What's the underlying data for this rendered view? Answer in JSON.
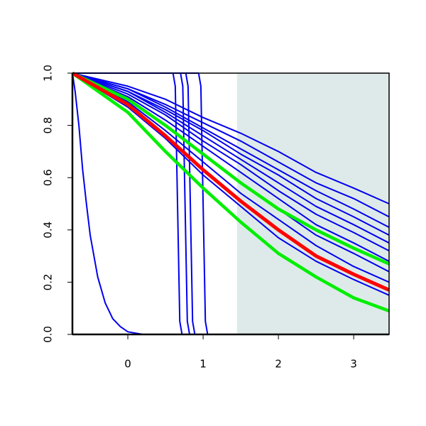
{
  "chart_data": {
    "type": "line",
    "xlim": [
      -0.736,
      3.47
    ],
    "ylim": [
      0,
      1
    ],
    "xticks": [
      0,
      1,
      2,
      3
    ],
    "yticks": [
      {
        "value": 0,
        "label": "0.0"
      },
      {
        "value": 0.2,
        "label": "0.2"
      },
      {
        "value": 0.4,
        "label": "0.4"
      },
      {
        "value": 0.6,
        "label": "0.6"
      },
      {
        "value": 0.8,
        "label": "0.8"
      },
      {
        "value": 1,
        "label": "1.0"
      }
    ],
    "shaded_region": {
      "x": [
        1.45,
        3.47
      ],
      "color": "#deeaea"
    },
    "x": [
      -0.736,
      0,
      0.5,
      1,
      1.5,
      2,
      2.5,
      3,
      3.47
    ],
    "series": [
      {
        "color": "#0000ee",
        "line_width": 2,
        "values": [
          1,
          0.95,
          0.9,
          0.83,
          0.77,
          0.7,
          0.62,
          0.56,
          0.5
        ]
      },
      {
        "color": "#0000ee",
        "line_width": 2,
        "values": [
          1,
          0.94,
          0.88,
          0.81,
          0.74,
          0.66,
          0.58,
          0.52,
          0.45
        ]
      },
      {
        "color": "#0000ee",
        "line_width": 2,
        "values": [
          1,
          0.94,
          0.87,
          0.79,
          0.71,
          0.63,
          0.55,
          0.48,
          0.41
        ]
      },
      {
        "color": "#0000ee",
        "line_width": 2,
        "values": [
          1,
          0.93,
          0.86,
          0.78,
          0.69,
          0.61,
          0.52,
          0.45,
          0.38
        ]
      },
      {
        "color": "#0000ee",
        "line_width": 2,
        "values": [
          1,
          0.93,
          0.85,
          0.76,
          0.67,
          0.58,
          0.49,
          0.42,
          0.35
        ]
      },
      {
        "color": "#0000ee",
        "line_width": 2,
        "values": [
          1,
          0.92,
          0.84,
          0.74,
          0.65,
          0.55,
          0.46,
          0.39,
          0.32
        ]
      },
      {
        "color": "#0000ee",
        "line_width": 2,
        "values": [
          1,
          0.91,
          0.82,
          0.72,
          0.62,
          0.52,
          0.42,
          0.35,
          0.28
        ]
      },
      {
        "color": "#0000ee",
        "line_width": 2,
        "values": [
          1,
          0.9,
          0.8,
          0.69,
          0.58,
          0.48,
          0.38,
          0.31,
          0.24
        ]
      },
      {
        "color": "#0000ee",
        "line_width": 2,
        "values": [
          1,
          0.89,
          0.78,
          0.66,
          0.54,
          0.44,
          0.34,
          0.26,
          0.2
        ]
      },
      {
        "color": "#0000ee",
        "line_width": 2,
        "values": [
          1,
          0.87,
          0.75,
          0.61,
          0.49,
          0.37,
          0.28,
          0.21,
          0.15
        ]
      },
      {
        "color": "#0000ee",
        "line_width": 2,
        "x": [
          -0.736,
          0.6,
          0.63,
          0.66,
          0.69,
          0.72,
          3.47
        ],
        "values": [
          1,
          1,
          0.95,
          0.5,
          0.05,
          0,
          0
        ]
      },
      {
        "color": "#0000ee",
        "line_width": 2,
        "x": [
          -0.736,
          0.7,
          0.73,
          0.76,
          0.79,
          0.82,
          3.47
        ],
        "values": [
          1,
          1,
          0.95,
          0.5,
          0.05,
          0,
          0
        ]
      },
      {
        "color": "#0000ee",
        "line_width": 2,
        "x": [
          -0.736,
          0.77,
          0.8,
          0.83,
          0.86,
          0.89,
          3.47
        ],
        "values": [
          1,
          1,
          0.95,
          0.5,
          0.05,
          0,
          0
        ]
      },
      {
        "color": "#0000ee",
        "line_width": 2,
        "x": [
          -0.736,
          0.94,
          0.97,
          1.0,
          1.03,
          1.06,
          3.47
        ],
        "values": [
          1,
          1,
          0.95,
          0.5,
          0.05,
          0,
          0
        ]
      },
      {
        "color": "#0000ee",
        "line_width": 2,
        "x": [
          -0.736,
          -0.7,
          -0.65,
          -0.6,
          -0.55,
          -0.5,
          -0.4,
          -0.3,
          -0.2,
          -0.1,
          0,
          0.2,
          3.47
        ],
        "values": [
          1,
          0.93,
          0.8,
          0.63,
          0.5,
          0.38,
          0.22,
          0.12,
          0.06,
          0.03,
          0.01,
          0,
          0
        ]
      },
      {
        "color": "#00ee00",
        "line_width": 4.5,
        "values": [
          1,
          0.9,
          0.8,
          0.69,
          0.58,
          0.48,
          0.4,
          0.33,
          0.27
        ]
      },
      {
        "color": "#00ee00",
        "line_width": 4.5,
        "values": [
          1,
          0.85,
          0.7,
          0.56,
          0.43,
          0.31,
          0.22,
          0.14,
          0.09
        ]
      },
      {
        "color": "#ff0000",
        "line_width": 5,
        "values": [
          1,
          0.88,
          0.76,
          0.63,
          0.51,
          0.4,
          0.3,
          0.23,
          0.17
        ]
      }
    ]
  }
}
